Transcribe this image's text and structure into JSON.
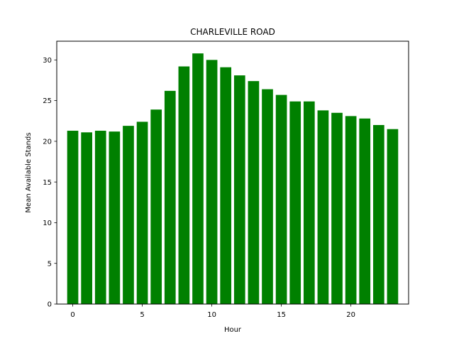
{
  "chart_data": {
    "type": "bar",
    "title": "CHARLEVILLE ROAD",
    "xlabel": "Hour",
    "ylabel": "Mean Available Stands",
    "x": [
      0,
      1,
      2,
      3,
      4,
      5,
      6,
      7,
      8,
      9,
      10,
      11,
      12,
      13,
      14,
      15,
      16,
      17,
      18,
      19,
      20,
      21,
      22,
      23
    ],
    "values": [
      21.3,
      21.1,
      21.3,
      21.2,
      21.9,
      22.4,
      23.9,
      26.2,
      29.2,
      30.8,
      30.0,
      29.1,
      28.1,
      27.4,
      26.4,
      25.7,
      24.9,
      24.9,
      23.8,
      23.5,
      23.1,
      22.8,
      22.0,
      21.5
    ],
    "bar_color": "#008000",
    "xlim": [
      -1.15,
      24.15
    ],
    "ylim": [
      0,
      32.3
    ],
    "xticks": [
      0,
      5,
      10,
      15,
      20
    ],
    "yticks": [
      0,
      5,
      10,
      15,
      20,
      25,
      30
    ],
    "grid": false
  }
}
